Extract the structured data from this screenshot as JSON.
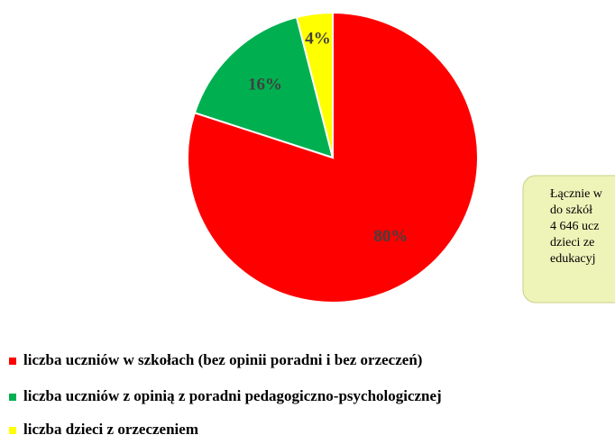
{
  "chart_data": {
    "type": "pie",
    "categories": [
      "liczba uczniów w szkołach (bez opinii poradni i bez orzeczeń)",
      "liczba uczniów z opinią z poradni pedagogiczno-psychologicznej",
      "liczba dzieci z orzeczeniem"
    ],
    "values": [
      80,
      16,
      4
    ],
    "value_labels": [
      "80%",
      "16%",
      "4%"
    ],
    "colors": [
      "#ff0000",
      "#00b050",
      "#ffff00"
    ],
    "annotation": [
      "Łącznie w",
      "do szkół",
      "4 646 ucz",
      "dzieci ze",
      "edukacyj"
    ]
  }
}
